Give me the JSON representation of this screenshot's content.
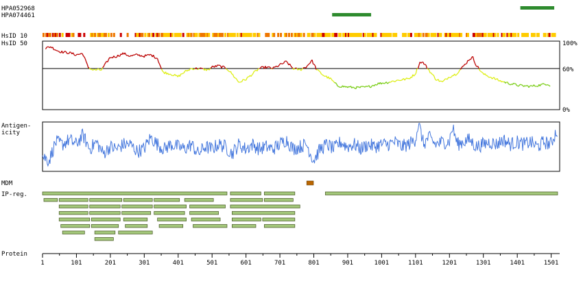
{
  "labels": {
    "antibody_1": "HPA052968",
    "antibody_2": "HPA074461",
    "hsid10": "HsID 10",
    "hsid50": "HsID 50",
    "antigenicity_1": "Antigen-",
    "antigenicity_2": "icity",
    "mdm": "MDM",
    "ipreg": "IP-reg.",
    "protein": "Protein",
    "pct_top": "100%",
    "pct_mid": "60%",
    "pct_bottom": "0%"
  },
  "colors": {
    "antibody": "#2e8b2e",
    "high": "#cc0000",
    "mid": "#ee7700",
    "low": "#ffcc00",
    "line_high": "#bb0000",
    "line_mid": "#ddee11",
    "line_low": "#77cc11",
    "antigenicity": "#4477dd",
    "mdm": "#bb6600",
    "region_fill": "#a3c77a",
    "region_stroke": "#445522"
  },
  "chart_data": {
    "type": "feature-track",
    "protein_length": 1520,
    "x_ticks": [
      1,
      101,
      201,
      301,
      401,
      501,
      601,
      701,
      801,
      901,
      1001,
      1101,
      1201,
      1301,
      1401,
      1501
    ],
    "antibodies": [
      {
        "name": "HPA052968",
        "start": 1410,
        "end": 1510
      },
      {
        "name": "HPA074461",
        "start": 855,
        "end": 970
      }
    ],
    "identity_threshold": 60,
    "identity_profile": [
      [
        1,
        88
      ],
      [
        25,
        92
      ],
      [
        45,
        86
      ],
      [
        60,
        84
      ],
      [
        80,
        83
      ],
      [
        100,
        80
      ],
      [
        120,
        82
      ],
      [
        135,
        62
      ],
      [
        150,
        58
      ],
      [
        175,
        58
      ],
      [
        200,
        76
      ],
      [
        220,
        78
      ],
      [
        240,
        82
      ],
      [
        260,
        78
      ],
      [
        280,
        80
      ],
      [
        300,
        78
      ],
      [
        320,
        80
      ],
      [
        340,
        75
      ],
      [
        355,
        55
      ],
      [
        380,
        52
      ],
      [
        400,
        48
      ],
      [
        420,
        55
      ],
      [
        440,
        60
      ],
      [
        460,
        60
      ],
      [
        490,
        58
      ],
      [
        500,
        62
      ],
      [
        520,
        64
      ],
      [
        545,
        60
      ],
      [
        560,
        52
      ],
      [
        580,
        40
      ],
      [
        600,
        44
      ],
      [
        620,
        52
      ],
      [
        640,
        60
      ],
      [
        660,
        62
      ],
      [
        680,
        60
      ],
      [
        700,
        65
      ],
      [
        720,
        70
      ],
      [
        740,
        60
      ],
      [
        760,
        58
      ],
      [
        780,
        63
      ],
      [
        795,
        72
      ],
      [
        810,
        58
      ],
      [
        830,
        50
      ],
      [
        850,
        45
      ],
      [
        870,
        35
      ],
      [
        900,
        33
      ],
      [
        930,
        32
      ],
      [
        960,
        33
      ],
      [
        990,
        38
      ],
      [
        1020,
        40
      ],
      [
        1050,
        43
      ],
      [
        1080,
        45
      ],
      [
        1100,
        52
      ],
      [
        1115,
        70
      ],
      [
        1125,
        68
      ],
      [
        1140,
        58
      ],
      [
        1160,
        45
      ],
      [
        1180,
        40
      ],
      [
        1200,
        48
      ],
      [
        1220,
        52
      ],
      [
        1240,
        62
      ],
      [
        1260,
        74
      ],
      [
        1270,
        76
      ],
      [
        1280,
        65
      ],
      [
        1300,
        52
      ],
      [
        1320,
        48
      ],
      [
        1350,
        42
      ],
      [
        1380,
        38
      ],
      [
        1410,
        35
      ],
      [
        1440,
        34
      ],
      [
        1470,
        36
      ],
      [
        1490,
        38
      ],
      [
        1500,
        35
      ]
    ],
    "antigenicity_profile": [
      [
        1,
        0.3
      ],
      [
        20,
        0.2
      ],
      [
        40,
        0.6
      ],
      [
        60,
        0.55
      ],
      [
        80,
        0.65
      ],
      [
        100,
        0.55
      ],
      [
        120,
        0.75
      ],
      [
        140,
        0.45
      ],
      [
        160,
        0.6
      ],
      [
        180,
        0.35
      ],
      [
        200,
        0.5
      ],
      [
        220,
        0.45
      ],
      [
        240,
        0.55
      ],
      [
        260,
        0.55
      ],
      [
        280,
        0.4
      ],
      [
        300,
        0.45
      ],
      [
        320,
        0.7
      ],
      [
        340,
        0.55
      ],
      [
        360,
        0.45
      ],
      [
        380,
        0.55
      ],
      [
        400,
        0.5
      ],
      [
        420,
        0.45
      ],
      [
        440,
        0.55
      ],
      [
        460,
        0.35
      ],
      [
        480,
        0.5
      ],
      [
        500,
        0.45
      ],
      [
        520,
        0.55
      ],
      [
        540,
        0.5
      ],
      [
        560,
        0.35
      ],
      [
        580,
        0.55
      ],
      [
        600,
        0.45
      ],
      [
        620,
        0.55
      ],
      [
        640,
        0.45
      ],
      [
        660,
        0.5
      ],
      [
        680,
        0.45
      ],
      [
        700,
        0.55
      ],
      [
        720,
        0.65
      ],
      [
        740,
        0.45
      ],
      [
        760,
        0.5
      ],
      [
        780,
        0.55
      ],
      [
        800,
        0.2
      ],
      [
        820,
        0.45
      ],
      [
        840,
        0.55
      ],
      [
        860,
        0.45
      ],
      [
        880,
        0.6
      ],
      [
        900,
        0.5
      ],
      [
        920,
        0.55
      ],
      [
        940,
        0.45
      ],
      [
        960,
        0.55
      ],
      [
        980,
        0.5
      ],
      [
        1000,
        0.55
      ],
      [
        1020,
        0.55
      ],
      [
        1040,
        0.6
      ],
      [
        1060,
        0.5
      ],
      [
        1080,
        0.55
      ],
      [
        1100,
        0.65
      ],
      [
        1110,
        1.0
      ],
      [
        1125,
        0.55
      ],
      [
        1140,
        0.7
      ],
      [
        1160,
        0.55
      ],
      [
        1180,
        0.6
      ],
      [
        1200,
        0.6
      ],
      [
        1210,
        0.92
      ],
      [
        1225,
        0.55
      ],
      [
        1240,
        0.6
      ],
      [
        1260,
        0.65
      ],
      [
        1280,
        0.5
      ],
      [
        1300,
        0.55
      ],
      [
        1320,
        0.6
      ],
      [
        1340,
        0.55
      ],
      [
        1360,
        0.65
      ],
      [
        1380,
        0.55
      ],
      [
        1400,
        0.6
      ],
      [
        1420,
        0.55
      ],
      [
        1440,
        0.6
      ],
      [
        1460,
        0.5
      ],
      [
        1480,
        0.6
      ],
      [
        1500,
        0.55
      ],
      [
        1515,
        0.82
      ]
    ],
    "mdm": [
      {
        "start": 780,
        "end": 800
      }
    ],
    "ip_regions": [
      [
        {
          "start": 1,
          "end": 545
        },
        {
          "start": 555,
          "end": 645
        },
        {
          "start": 655,
          "end": 745
        },
        {
          "start": 835,
          "end": 1520
        }
      ],
      [
        {
          "start": 5,
          "end": 45
        },
        {
          "start": 50,
          "end": 135
        },
        {
          "start": 140,
          "end": 235
        },
        {
          "start": 240,
          "end": 325
        },
        {
          "start": 330,
          "end": 405
        },
        {
          "start": 420,
          "end": 505
        },
        {
          "start": 555,
          "end": 650
        },
        {
          "start": 655,
          "end": 740
        }
      ],
      [
        {
          "start": 50,
          "end": 135
        },
        {
          "start": 140,
          "end": 230
        },
        {
          "start": 235,
          "end": 325
        },
        {
          "start": 330,
          "end": 425
        },
        {
          "start": 435,
          "end": 540
        },
        {
          "start": 555,
          "end": 760
        }
      ],
      [
        {
          "start": 50,
          "end": 135
        },
        {
          "start": 140,
          "end": 230
        },
        {
          "start": 235,
          "end": 320
        },
        {
          "start": 330,
          "end": 420
        },
        {
          "start": 435,
          "end": 520
        },
        {
          "start": 560,
          "end": 745
        }
      ],
      [
        {
          "start": 50,
          "end": 140
        },
        {
          "start": 145,
          "end": 230
        },
        {
          "start": 240,
          "end": 310
        },
        {
          "start": 340,
          "end": 425
        },
        {
          "start": 440,
          "end": 525
        },
        {
          "start": 560,
          "end": 645
        },
        {
          "start": 650,
          "end": 745
        }
      ],
      [
        {
          "start": 55,
          "end": 140
        },
        {
          "start": 145,
          "end": 225
        },
        {
          "start": 245,
          "end": 310
        },
        {
          "start": 345,
          "end": 415
        },
        {
          "start": 445,
          "end": 545
        },
        {
          "start": 560,
          "end": 630
        },
        {
          "start": 655,
          "end": 745
        }
      ],
      [
        {
          "start": 60,
          "end": 125
        },
        {
          "start": 155,
          "end": 215
        },
        {
          "start": 225,
          "end": 325
        }
      ],
      [
        {
          "start": 155,
          "end": 210
        }
      ]
    ]
  }
}
